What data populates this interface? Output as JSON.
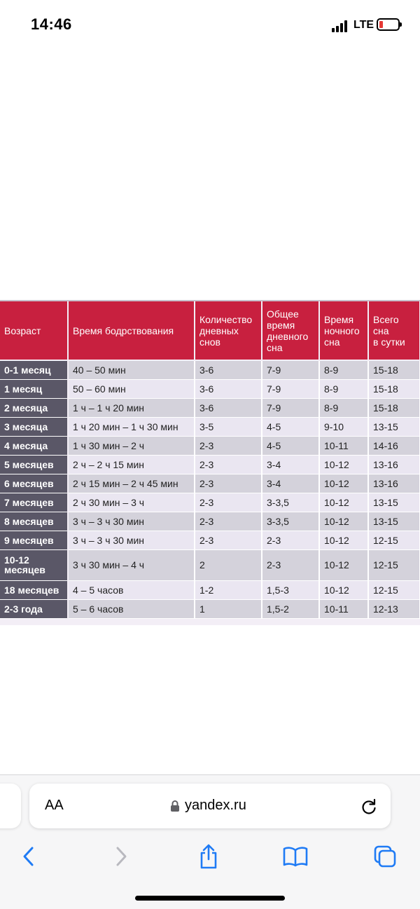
{
  "status_bar": {
    "time": "14:46",
    "network": "LTE"
  },
  "table": {
    "headers": [
      [
        "Возраст"
      ],
      [
        "Время бодрствования"
      ],
      [
        "Количество",
        "дневных",
        "снов"
      ],
      [
        "Общее",
        "время",
        "дневного",
        "сна"
      ],
      [
        "Время",
        "ночного",
        "сна"
      ],
      [
        "Всего",
        "сна",
        "в сутки"
      ]
    ],
    "rows": [
      {
        "age": [
          "0-1 месяц"
        ],
        "awake": "40 – 50 мин",
        "naps": "3-6",
        "day_sleep": "7-9",
        "night_sleep": "8-9",
        "total": "15-18"
      },
      {
        "age": [
          "1 месяц"
        ],
        "awake": "50 – 60 мин",
        "naps": "3-6",
        "day_sleep": "7-9",
        "night_sleep": "8-9",
        "total": "15-18"
      },
      {
        "age": [
          "2 месяца"
        ],
        "awake": "1 ч – 1 ч 20 мин",
        "naps": "3-6",
        "day_sleep": "7-9",
        "night_sleep": "8-9",
        "total": "15-18"
      },
      {
        "age": [
          "3 месяца"
        ],
        "awake": "1 ч 20 мин – 1 ч 30 мин",
        "naps": "3-5",
        "day_sleep": "4-5",
        "night_sleep": "9-10",
        "total": "13-15"
      },
      {
        "age": [
          "4 месяца"
        ],
        "awake": "1 ч 30 мин – 2 ч",
        "naps": "2-3",
        "day_sleep": "4-5",
        "night_sleep": "10-11",
        "total": "14-16"
      },
      {
        "age": [
          "5 месяцев"
        ],
        "awake": "2 ч – 2 ч 15 мин",
        "naps": "2-3",
        "day_sleep": "3-4",
        "night_sleep": "10-12",
        "total": "13-16"
      },
      {
        "age": [
          "6 месяцев"
        ],
        "awake": "2 ч 15 мин – 2 ч 45 мин",
        "naps": "2-3",
        "day_sleep": "3-4",
        "night_sleep": "10-12",
        "total": "13-16"
      },
      {
        "age": [
          "7 месяцев"
        ],
        "awake": "2 ч 30 мин – 3 ч",
        "naps": "2-3",
        "day_sleep": "3-3,5",
        "night_sleep": "10-12",
        "total": "13-15"
      },
      {
        "age": [
          "8 месяцев"
        ],
        "awake": "3 ч – 3 ч 30 мин",
        "naps": "2-3",
        "day_sleep": "3-3,5",
        "night_sleep": "10-12",
        "total": "13-15"
      },
      {
        "age": [
          "9 месяцев"
        ],
        "awake": "3 ч – 3 ч 30 мин",
        "naps": "2-3",
        "day_sleep": "2-3",
        "night_sleep": "10-12",
        "total": "12-15"
      },
      {
        "age": [
          "10-12",
          "месяцев"
        ],
        "awake": "3 ч 30 мин – 4 ч",
        "naps": "2",
        "day_sleep": "2-3",
        "night_sleep": "10-12",
        "total": "12-15"
      },
      {
        "age": [
          "18 месяцев"
        ],
        "awake": "4 – 5 часов",
        "naps": "1-2",
        "day_sleep": "1,5-3",
        "night_sleep": "10-12",
        "total": "12-15"
      },
      {
        "age": [
          "2-3 года"
        ],
        "awake": "5 – 6 часов",
        "naps": "1",
        "day_sleep": "1,5-2",
        "night_sleep": "10-11",
        "total": "12-13"
      }
    ]
  },
  "browser": {
    "text_size_label": "AA",
    "url": "yandex.ru",
    "icons": {
      "lock": "lock-icon",
      "reload": "reload-icon",
      "back": "chevron-left-icon",
      "forward": "chevron-right-icon",
      "share": "share-icon",
      "bookmarks": "book-icon",
      "tabs": "tabs-icon"
    },
    "accent_color": "#1f7bf5"
  },
  "colors": {
    "header_red": "#c8203f",
    "age_column": "#5a5767"
  }
}
